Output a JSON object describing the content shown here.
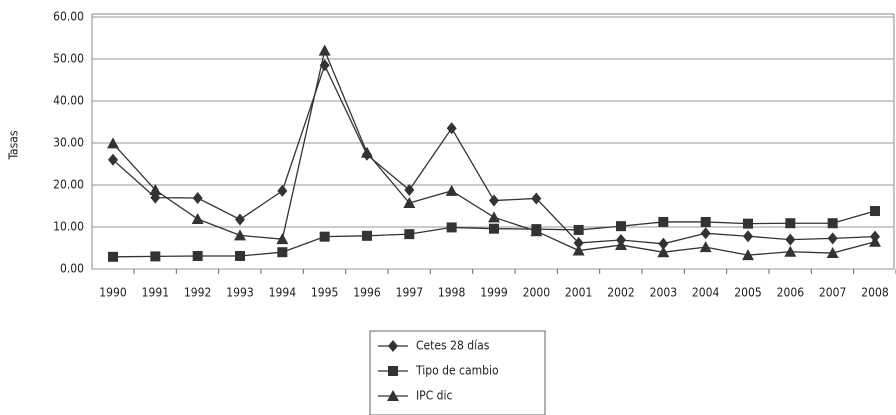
{
  "chart_data": {
    "type": "line",
    "ylabel": "Tasas",
    "categories": [
      "1990",
      "1991",
      "1992",
      "1993",
      "1994",
      "1995",
      "1996",
      "1997",
      "1998",
      "1999",
      "2000",
      "2001",
      "2002",
      "2003",
      "2004",
      "2005",
      "2006",
      "2007",
      "2008"
    ],
    "series": [
      {
        "name": "Cetes 28 días",
        "color": "#333333",
        "marker": "diamond",
        "values": [
          26.0,
          17.0,
          16.9,
          11.8,
          18.6,
          48.5,
          27.2,
          18.8,
          33.5,
          16.3,
          16.8,
          6.2,
          6.9,
          6.0,
          8.5,
          7.8,
          7.0,
          7.3,
          7.7
        ]
      },
      {
        "name": "Tipo de cambio",
        "color": "#333333",
        "marker": "square",
        "values": [
          2.9,
          3.0,
          3.1,
          3.1,
          4.0,
          7.7,
          7.9,
          8.3,
          9.9,
          9.6,
          9.5,
          9.3,
          10.2,
          11.2,
          11.2,
          10.8,
          10.9,
          10.9,
          13.8
        ]
      },
      {
        "name": "IPC dic",
        "color": "#333333",
        "marker": "triangle",
        "values": [
          29.9,
          18.8,
          11.9,
          8.0,
          7.1,
          52.0,
          27.7,
          15.7,
          18.6,
          12.3,
          9.0,
          4.4,
          5.7,
          4.0,
          5.2,
          3.3,
          4.1,
          3.8,
          6.5
        ]
      }
    ],
    "ylim": [
      0,
      60
    ],
    "yticks": [
      {
        "value": 0,
        "label": "0.00"
      },
      {
        "value": 10,
        "label": "10.00"
      },
      {
        "value": 20,
        "label": "20.00"
      },
      {
        "value": 30,
        "label": "30.00"
      },
      {
        "value": 40,
        "label": "40.00"
      },
      {
        "value": 50,
        "label": "50.00"
      },
      {
        "value": 60,
        "label": "60.00"
      }
    ],
    "grid": true,
    "legend": "bottom"
  }
}
